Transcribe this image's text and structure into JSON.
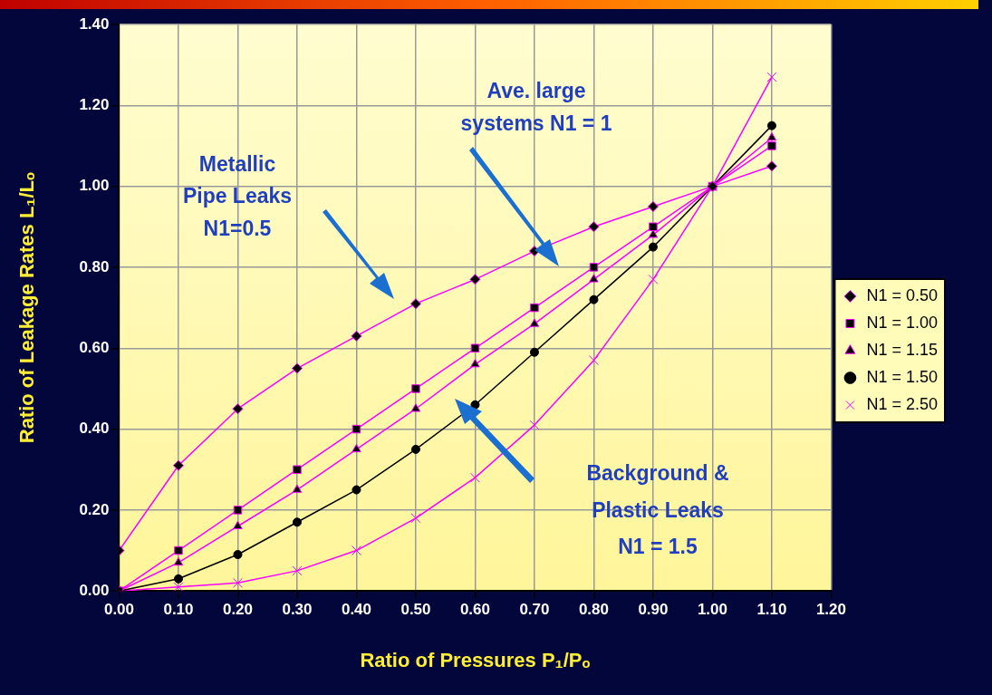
{
  "chart_data": {
    "type": "line",
    "xlabel": "Ratio of Pressures P₁/Pₒ",
    "ylabel": "Ratio of Leakage Rates L₁/Lₒ",
    "x": [
      0,
      0.1,
      0.2,
      0.3,
      0.4,
      0.5,
      0.6,
      0.7,
      0.8,
      0.9,
      1.0,
      1.1
    ],
    "series": [
      {
        "name": "N1 = 0.50",
        "color": "#ff00ff",
        "marker": "diamond",
        "values": [
          0.1,
          0.31,
          0.45,
          0.55,
          0.63,
          0.71,
          0.77,
          0.84,
          0.9,
          0.95,
          1.0,
          1.05
        ]
      },
      {
        "name": "N1 = 1.00",
        "color": "#ff00ff",
        "marker": "square",
        "values": [
          0,
          0.1,
          0.2,
          0.3,
          0.4,
          0.5,
          0.6,
          0.7,
          0.8,
          0.9,
          1.0,
          1.1
        ]
      },
      {
        "name": "N1 = 1.15",
        "color": "#ff00ff",
        "marker": "triangle",
        "values": [
          0,
          0.07,
          0.16,
          0.25,
          0.35,
          0.45,
          0.56,
          0.66,
          0.77,
          0.88,
          1.0,
          1.12
        ]
      },
      {
        "name": "N1 = 1.50",
        "color": "#000000",
        "marker": "circle",
        "values": [
          0,
          0.03,
          0.09,
          0.17,
          0.25,
          0.35,
          0.46,
          0.59,
          0.72,
          0.85,
          1.0,
          1.15
        ]
      },
      {
        "name": "N1 = 2.50",
        "color": "#ff00ff",
        "marker": "cross",
        "values": [
          0,
          0.01,
          0.02,
          0.05,
          0.1,
          0.18,
          0.28,
          0.41,
          0.57,
          0.77,
          1.0,
          1.27
        ]
      }
    ],
    "xlim": [
      0,
      1.2
    ],
    "xticks": [
      {
        "value": 0,
        "label": "0.00"
      },
      {
        "value": 0.1,
        "label": "0.10"
      },
      {
        "value": 0.2,
        "label": "0.20"
      },
      {
        "value": 0.3,
        "label": "0.30"
      },
      {
        "value": 0.4,
        "label": "0.40"
      },
      {
        "value": 0.5,
        "label": "0.50"
      },
      {
        "value": 0.6,
        "label": "0.60"
      },
      {
        "value": 0.7,
        "label": "0.70"
      },
      {
        "value": 0.8,
        "label": "0.80"
      },
      {
        "value": 0.9,
        "label": "0.90"
      },
      {
        "value": 1.0,
        "label": "1.00"
      },
      {
        "value": 1.1,
        "label": "1.10"
      },
      {
        "value": 1.2,
        "label": "1.20"
      }
    ],
    "ylim": [
      0,
      1.4
    ],
    "yticks": [
      {
        "value": 0,
        "label": "0.00"
      },
      {
        "value": 0.2,
        "label": "0.20"
      },
      {
        "value": 0.4,
        "label": "0.40"
      },
      {
        "value": 0.6,
        "label": "0.60"
      },
      {
        "value": 0.8,
        "label": "0.80"
      },
      {
        "value": 1.0,
        "label": "1.00"
      },
      {
        "value": 1.2,
        "label": "1.20"
      },
      {
        "value": 1.4,
        "label": "1.40"
      }
    ],
    "grid": true,
    "legend": "right",
    "line_style": "solid",
    "annotations": [
      "Metallic\nPipe Leaks\nN1=0.5",
      "Ave. large\nsystems N1 = 1",
      "Background &\nPlastic Leaks\nN1 = 1.5"
    ]
  }
}
